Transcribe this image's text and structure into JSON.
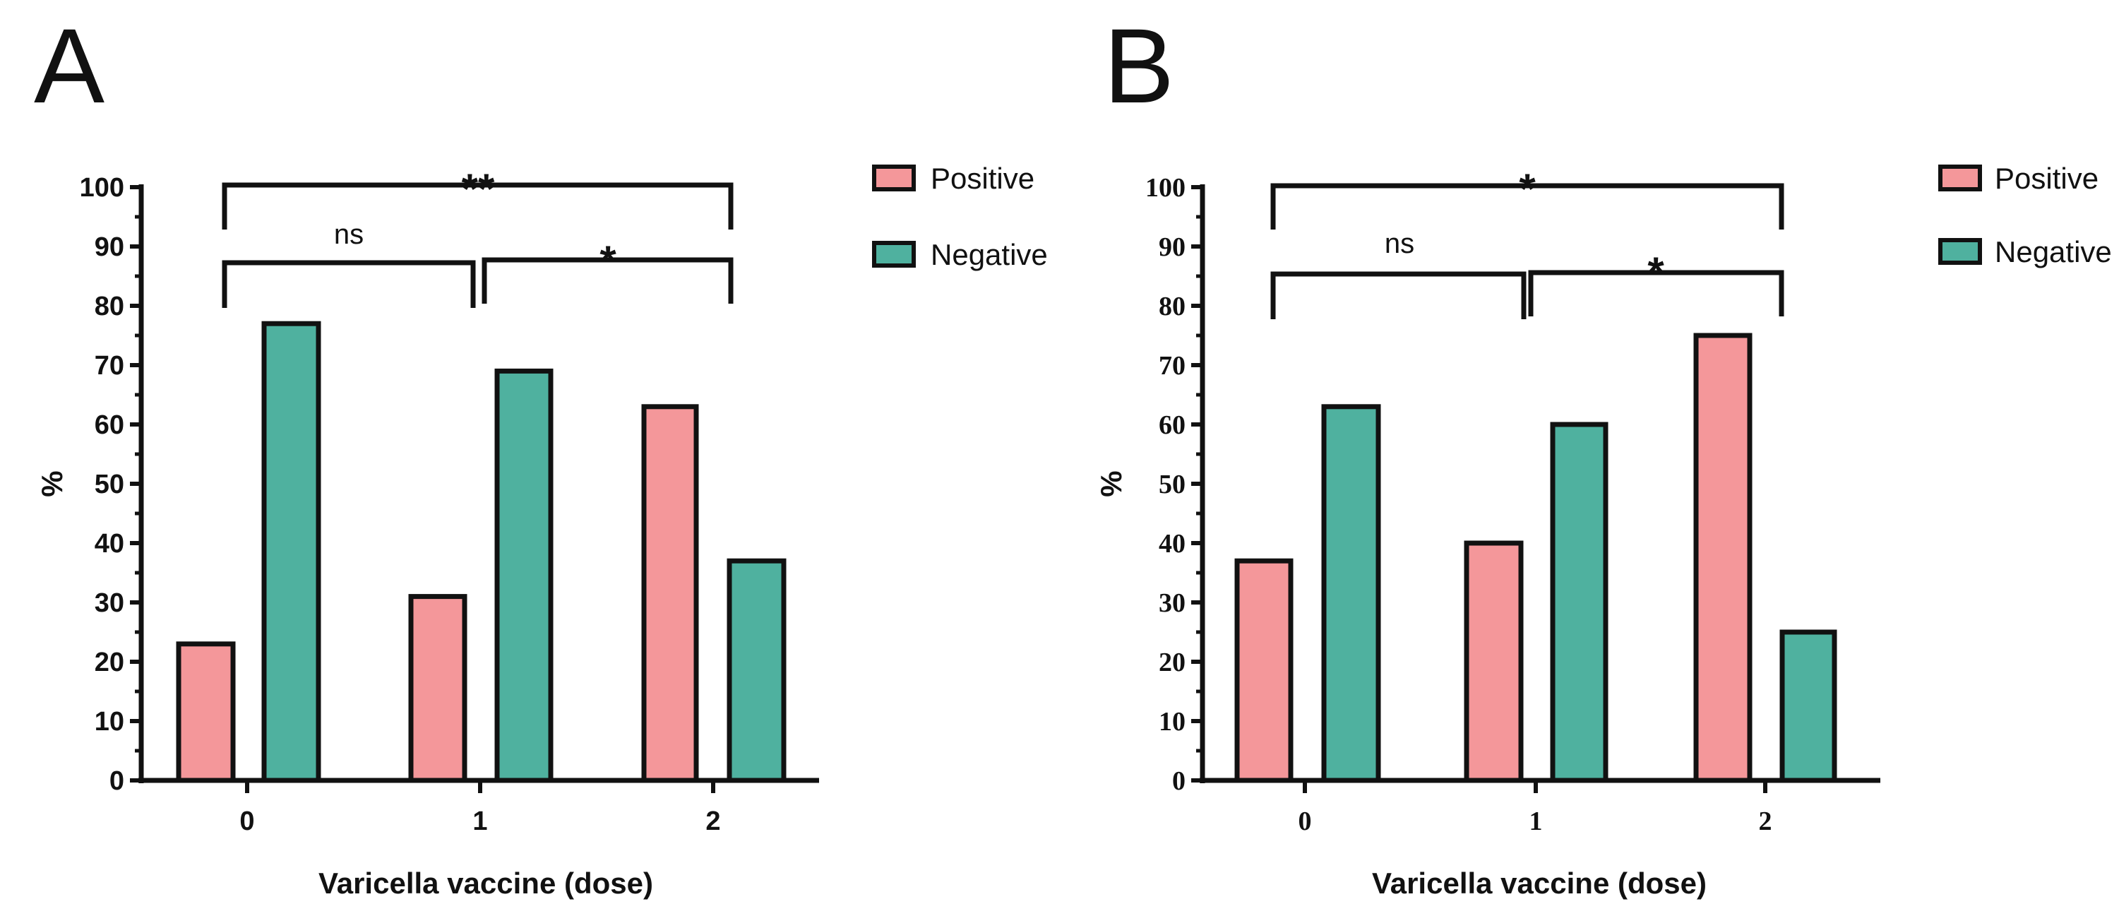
{
  "chart_data": [
    {
      "panel": "A",
      "type": "bar",
      "categories": [
        "0",
        "1",
        "2"
      ],
      "series": [
        {
          "name": "Positive",
          "values": [
            23,
            31,
            63
          ]
        },
        {
          "name": "Negative",
          "values": [
            77,
            69,
            37
          ]
        }
      ],
      "xlabel": "Varicella vaccine (dose)",
      "ylabel": "%",
      "ylim": [
        0,
        100
      ],
      "yticks": [
        "0",
        "10",
        "20",
        "30",
        "40",
        "50",
        "60",
        "70",
        "80",
        "90",
        "100"
      ],
      "legend": [
        "Positive",
        "Negative"
      ],
      "legend_position": "top-right",
      "significance": [
        {
          "from": "0",
          "to": "2",
          "label": "**"
        },
        {
          "from": "0",
          "to": "1",
          "label": "ns"
        },
        {
          "from": "1",
          "to": "2",
          "label": "*"
        }
      ]
    },
    {
      "panel": "B",
      "type": "bar",
      "categories": [
        "0",
        "1",
        "2"
      ],
      "series": [
        {
          "name": "Positive",
          "values": [
            37,
            40,
            75
          ]
        },
        {
          "name": "Negative",
          "values": [
            63,
            60,
            25
          ]
        }
      ],
      "xlabel": "Varicella vaccine (dose)",
      "ylabel": "%",
      "ylim": [
        0,
        100
      ],
      "yticks": [
        "0",
        "10",
        "20",
        "30",
        "40",
        "50",
        "60",
        "70",
        "80",
        "90",
        "100"
      ],
      "legend": [
        "Positive",
        "Negative"
      ],
      "legend_position": "top-right",
      "significance": [
        {
          "from": "0",
          "to": "2",
          "label": "*"
        },
        {
          "from": "0",
          "to": "1",
          "label": "ns"
        },
        {
          "from": "1",
          "to": "2",
          "label": "*"
        }
      ]
    }
  ],
  "colors": {
    "positive": "#f4979a",
    "negative": "#4fb19f",
    "axis": "#111111"
  }
}
